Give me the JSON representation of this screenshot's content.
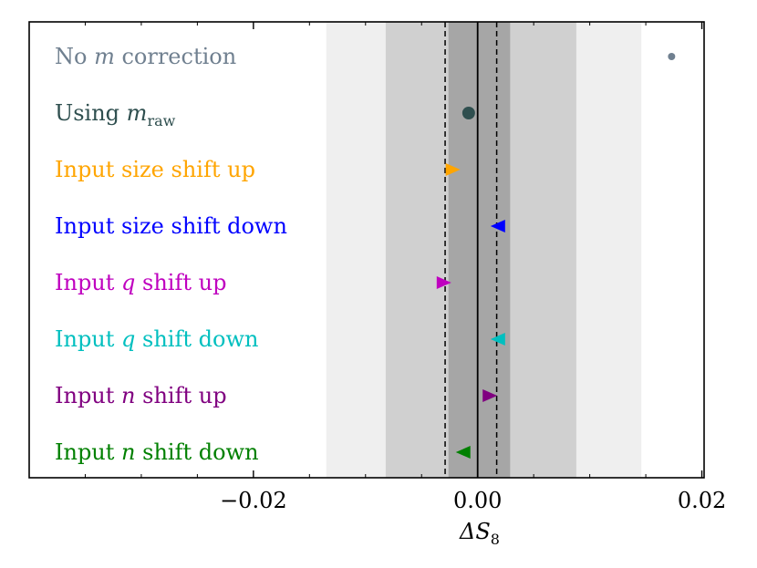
{
  "chart_data": {
    "type": "scatter",
    "title": "",
    "xlabel": "ΔS",
    "xlabel_sub": "8",
    "ylabel": "",
    "xlim": [
      -0.04,
      0.0202
    ],
    "x_ticks": [
      {
        "value": -0.02,
        "label": "−0.02"
      },
      {
        "value": 0.0,
        "label": "0.00"
      },
      {
        "value": 0.02,
        "label": "0.02"
      }
    ],
    "grid": false,
    "legend": "none",
    "bands": [
      {
        "low": -0.0135,
        "high": 0.0146,
        "color": "#efefef"
      },
      {
        "low": -0.0082,
        "high": 0.0088,
        "color": "#d0d0d0"
      },
      {
        "low": -0.0026,
        "high": 0.0029,
        "color": "#a6a6a6"
      }
    ],
    "reference_lines": [
      {
        "x": 0.0,
        "style": "solid"
      },
      {
        "x": -0.0029,
        "style": "dashed"
      },
      {
        "x": 0.0017,
        "style": "dashed"
      }
    ],
    "series": [
      {
        "label_parts": [
          {
            "t": "No ",
            "i": false
          },
          {
            "t": "m",
            "i": true
          },
          {
            "t": " correction",
            "i": false
          }
        ],
        "x": 0.0173,
        "color": "#708090",
        "marker": "small-dot"
      },
      {
        "label_parts": [
          {
            "t": "Using ",
            "i": false
          },
          {
            "t": "m",
            "i": true
          }
        ],
        "label_sub": "raw",
        "x": -0.0008,
        "color": "#2f4f4f",
        "marker": "dot"
      },
      {
        "label_parts": [
          {
            "t": "Input size shift up",
            "i": false
          }
        ],
        "x": -0.0022,
        "color": "#ffa500",
        "marker": "triangle-right"
      },
      {
        "label_parts": [
          {
            "t": "Input size shift down",
            "i": false
          }
        ],
        "x": 0.0018,
        "color": "#0000ff",
        "marker": "triangle-left"
      },
      {
        "label_parts": [
          {
            "t": "Input ",
            "i": false
          },
          {
            "t": "q",
            "i": true
          },
          {
            "t": " shift up",
            "i": false
          }
        ],
        "x": -0.003,
        "color": "#bf00bf",
        "marker": "triangle-right"
      },
      {
        "label_parts": [
          {
            "t": "Input ",
            "i": false
          },
          {
            "t": "q",
            "i": true
          },
          {
            "t": " shift down",
            "i": false
          }
        ],
        "x": 0.0018,
        "color": "#00bfbf",
        "marker": "triangle-left"
      },
      {
        "label_parts": [
          {
            "t": "Input ",
            "i": false
          },
          {
            "t": "n",
            "i": true
          },
          {
            "t": " shift up",
            "i": false
          }
        ],
        "x": 0.0011,
        "color": "#800080",
        "marker": "triangle-right"
      },
      {
        "label_parts": [
          {
            "t": "Input ",
            "i": false
          },
          {
            "t": "n",
            "i": true
          },
          {
            "t": " shift down",
            "i": false
          }
        ],
        "x": -0.0013,
        "color": "#008000",
        "marker": "triangle-left"
      }
    ]
  }
}
